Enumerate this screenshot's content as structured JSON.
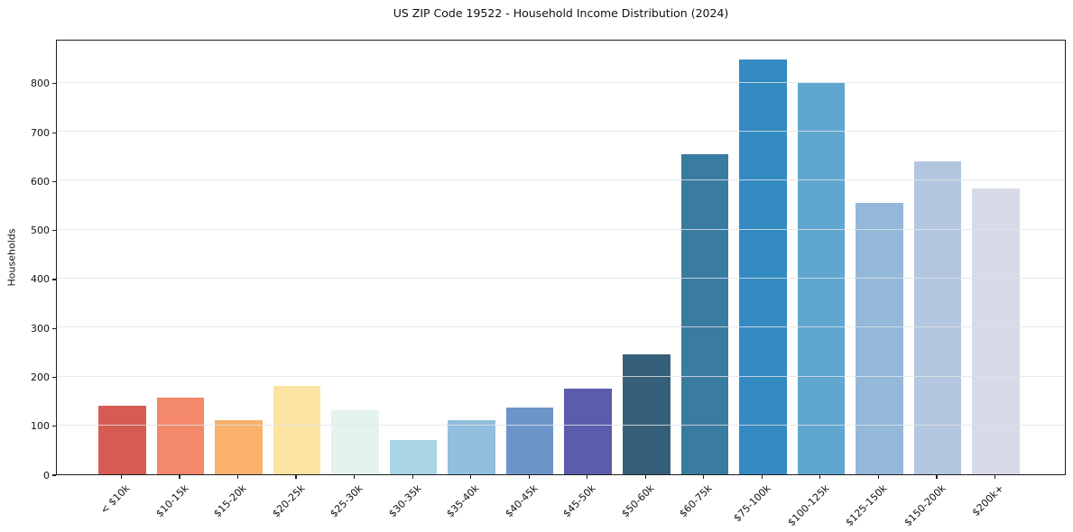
{
  "chart_data": {
    "type": "bar",
    "title": "US ZIP Code 19522 - Household Income Distribution (2024)",
    "xlabel": "",
    "ylabel": "Households",
    "categories": [
      "< $10k",
      "$10-15k",
      "$15-20k",
      "$20-25k",
      "$25-30k",
      "$30-35k",
      "$35-40k",
      "$40-45k",
      "$45-50k",
      "$50-60k",
      "$60-75k",
      "$75-100k",
      "$100-125k",
      "$125-150k",
      "$150-200k",
      "$200k+"
    ],
    "values": [
      140,
      157,
      110,
      181,
      130,
      71,
      111,
      137,
      176,
      245,
      655,
      847,
      799,
      555,
      640,
      585
    ],
    "bar_colors": [
      "#d65b52",
      "#f4886a",
      "#f9b16c",
      "#fce3a2",
      "#e4f3f0",
      "#a9d5e6",
      "#90bedd",
      "#6d95c9",
      "#5b5dac",
      "#36607a",
      "#3a7ca0",
      "#348bc2",
      "#5fa7cf",
      "#93b8d9",
      "#b3c6df",
      "#d7dae8"
    ],
    "yticks": [
      0,
      100,
      200,
      300,
      400,
      500,
      600,
      700,
      800
    ],
    "ylim": [
      0,
      890
    ],
    "grid": "horizontal gridlines at y ticks, light gray, drawn over bars",
    "legend": "none",
    "x_tick_label_rotation_deg": 45,
    "spine_color": "#1f1f1f",
    "background_color": "#ffffff"
  }
}
